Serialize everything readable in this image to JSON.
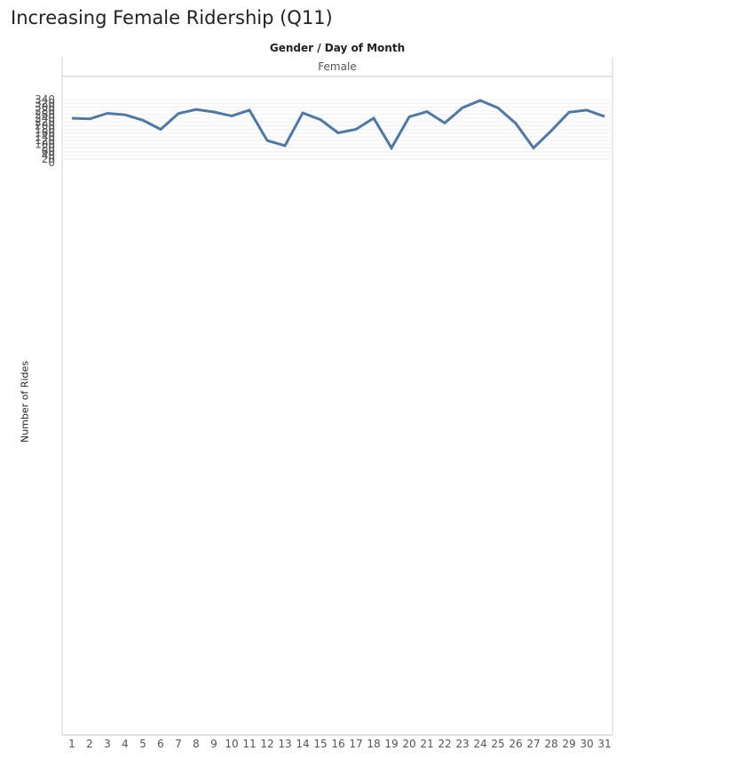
{
  "title": "Increasing Female Ridership (Q11)",
  "chart_data": {
    "type": "line",
    "header": "Gender / Day of Month",
    "panel": "Female",
    "xlabel": "",
    "ylabel": "Number of Rides",
    "x": [
      1,
      2,
      3,
      4,
      5,
      6,
      7,
      8,
      9,
      10,
      11,
      12,
      13,
      14,
      15,
      16,
      17,
      18,
      19,
      20,
      21,
      22,
      23,
      24,
      25,
      26,
      27,
      28,
      29,
      30,
      31
    ],
    "series": [
      {
        "values": [
          240,
          236,
          266,
          258,
          229,
          180,
          265,
          287,
          273,
          252,
          283,
          120,
          92,
          268,
          232,
          161,
          180,
          240,
          80,
          247,
          275,
          214,
          296,
          335,
          295,
          212,
          80,
          172,
          272,
          283,
          249
        ]
      }
    ],
    "ylim": [
      0,
      350
    ],
    "yticks": [
      0,
      20,
      40,
      60,
      80,
      100,
      120,
      140,
      160,
      180,
      200,
      220,
      240,
      260,
      280,
      300,
      320,
      340
    ],
    "line_color": "#4e79a7",
    "grid": true
  }
}
